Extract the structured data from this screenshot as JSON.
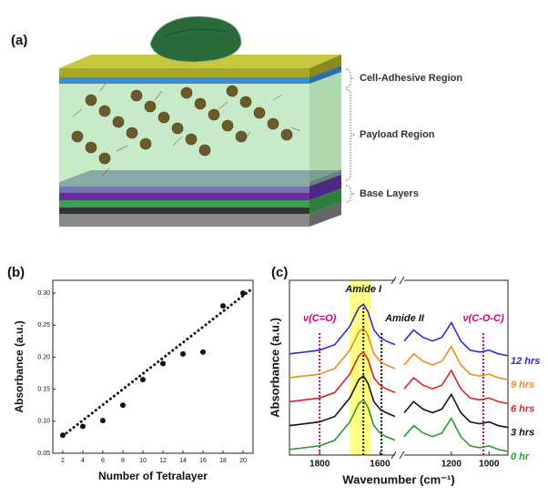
{
  "diagram": {
    "panel_label": "(a)",
    "labels": [
      "Cell-Adhesive Region",
      "Payload Region",
      "Base Layers"
    ]
  },
  "chart_data": [
    {
      "type": "scatter",
      "panel_label": "(b)",
      "xlabel": "Number of Tetralayer",
      "ylabel": "Absorbance (a.u.)",
      "x": [
        2,
        4,
        6,
        8,
        10,
        12,
        14,
        16,
        18,
        20
      ],
      "values": [
        0.078,
        0.092,
        0.101,
        0.125,
        0.165,
        0.19,
        0.205,
        0.208,
        0.28,
        0.3
      ],
      "color": "#111111",
      "fit_line": {
        "x": [
          2,
          21
        ],
        "values": [
          0.077,
          0.308
        ]
      },
      "xlim": [
        1,
        21
      ],
      "xticks": [
        2,
        4,
        6,
        8,
        10,
        12,
        14,
        16,
        18,
        20
      ],
      "ylim": [
        0.05,
        0.32
      ],
      "yticks": [
        0.05,
        {
          "value": 0.1,
          "label": "0.10"
        },
        0.15,
        {
          "value": 0.2,
          "label": "0.20"
        },
        0.25,
        {
          "value": 0.3,
          "label": "0.30"
        }
      ]
    },
    {
      "type": "line",
      "panel_label": "(c)",
      "xlabel": "Wavenumber (cm⁻¹)",
      "ylabel": "Absorbance (a.u.)",
      "x": [
        1900,
        1800,
        1750,
        1700,
        1670,
        1655,
        1640,
        1620,
        1600,
        1580,
        1550,
        1500,
        1450,
        1400,
        1350,
        1300,
        1250,
        1200,
        1150,
        1100,
        1050,
        1000,
        950,
        900
      ],
      "series": [
        {
          "name": "0 hr",
          "color": "#2a9a2a",
          "values": [
            0.3,
            0.5,
            0.8,
            1.8,
            2.8,
            3.0,
            2.6,
            1.6,
            1.2,
            1.0,
            0.8,
            null,
            1.0,
            1.6,
            1.2,
            1.0,
            1.2,
            2.0,
            1.0,
            0.5,
            0.4,
            0.5,
            0.3,
            0.2
          ]
        },
        {
          "name": "3 hrs",
          "color": "#111111",
          "values": [
            1.6,
            1.8,
            2.1,
            3.1,
            4.1,
            4.3,
            3.9,
            2.9,
            2.5,
            2.3,
            2.1,
            null,
            2.3,
            2.9,
            2.5,
            2.3,
            2.5,
            3.3,
            2.3,
            1.8,
            1.7,
            1.8,
            1.6,
            1.5
          ]
        },
        {
          "name": "6 hrs",
          "color": "#e02020",
          "values": [
            2.9,
            3.1,
            3.4,
            4.4,
            5.4,
            5.6,
            5.2,
            4.2,
            3.8,
            3.6,
            3.4,
            null,
            3.6,
            4.2,
            3.8,
            3.6,
            3.8,
            4.6,
            3.6,
            3.1,
            3.0,
            3.1,
            2.9,
            2.8
          ]
        },
        {
          "name": "9 hrs",
          "color": "#f08a1c",
          "values": [
            4.2,
            4.4,
            4.7,
            5.7,
            6.7,
            6.9,
            6.5,
            5.5,
            5.1,
            4.9,
            4.7,
            null,
            4.9,
            5.5,
            5.1,
            4.9,
            5.1,
            5.9,
            4.9,
            4.4,
            4.3,
            4.4,
            4.2,
            4.1
          ]
        },
        {
          "name": "12 hrs",
          "color": "#2a2adc",
          "values": [
            5.5,
            5.7,
            6.0,
            7.0,
            8.0,
            8.2,
            7.8,
            6.8,
            6.4,
            6.2,
            6.0,
            null,
            6.2,
            6.8,
            6.4,
            6.2,
            6.4,
            7.2,
            6.2,
            5.7,
            5.6,
            5.7,
            5.5,
            5.4
          ]
        }
      ],
      "xlim": [
        1900,
        900
      ],
      "axis_break": [
        1550,
        1450
      ],
      "xticks": [
        1800,
        1600,
        1200,
        1000
      ],
      "ylim": [
        0,
        9.5
      ],
      "highlight": [
        1700,
        1630
      ],
      "ref_lines": [
        {
          "x": 1800,
          "label": "ν(C=O)",
          "color": "#cc0077"
        },
        {
          "x": 1655,
          "label": "Amide I",
          "color": "#111111"
        },
        {
          "x": 1595,
          "label": "Amide II",
          "color": "#111111"
        },
        {
          "x": 1030,
          "label": "ν(C-O-C)",
          "color": "#cc0077"
        }
      ]
    }
  ]
}
